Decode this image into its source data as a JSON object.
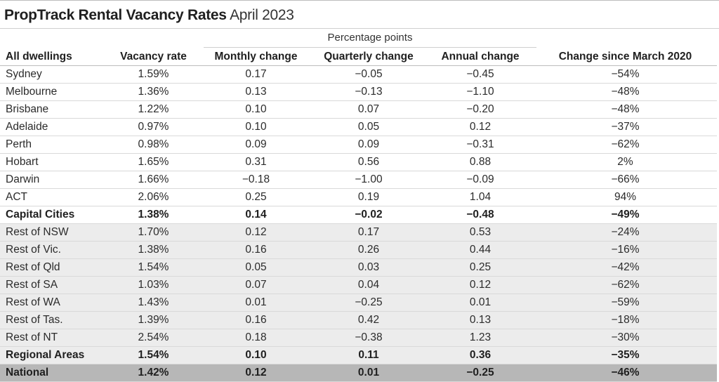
{
  "title": {
    "bold": "PropTrack Rental Vacancy Rates",
    "sub": "April 2023"
  },
  "group_header": "Percentage points",
  "columns": [
    "All dwellings",
    "Vacancy rate",
    "Monthly change",
    "Quarterly change",
    "Annual change",
    "Change since March 2020"
  ],
  "rows": [
    {
      "name": "Sydney",
      "vacancy": "1.59%",
      "monthly": "0.17",
      "quarterly": "−0.05",
      "annual": "−0.45",
      "since2020": "−54%"
    },
    {
      "name": "Melbourne",
      "vacancy": "1.36%",
      "monthly": "0.13",
      "quarterly": "−0.13",
      "annual": "−1.10",
      "since2020": "−48%"
    },
    {
      "name": "Brisbane",
      "vacancy": "1.22%",
      "monthly": "0.10",
      "quarterly": "0.07",
      "annual": "−0.20",
      "since2020": "−48%"
    },
    {
      "name": "Adelaide",
      "vacancy": "0.97%",
      "monthly": "0.10",
      "quarterly": "0.05",
      "annual": "0.12",
      "since2020": "−37%"
    },
    {
      "name": "Perth",
      "vacancy": "0.98%",
      "monthly": "0.09",
      "quarterly": "0.09",
      "annual": "−0.31",
      "since2020": "−62%"
    },
    {
      "name": "Hobart",
      "vacancy": "1.65%",
      "monthly": "0.31",
      "quarterly": "0.56",
      "annual": "0.88",
      "since2020": "2%"
    },
    {
      "name": "Darwin",
      "vacancy": "1.66%",
      "monthly": "−0.18",
      "quarterly": "−1.00",
      "annual": "−0.09",
      "since2020": "−66%"
    },
    {
      "name": "ACT",
      "vacancy": "2.06%",
      "monthly": "0.25",
      "quarterly": "0.19",
      "annual": "1.04",
      "since2020": "94%"
    },
    {
      "name": "Capital Cities",
      "vacancy": "1.38%",
      "monthly": "0.14",
      "quarterly": "−0.02",
      "annual": "−0.48",
      "since2020": "−49%"
    },
    {
      "name": "Rest of NSW",
      "vacancy": "1.70%",
      "monthly": "0.12",
      "quarterly": "0.17",
      "annual": "0.53",
      "since2020": "−24%"
    },
    {
      "name": "Rest of Vic.",
      "vacancy": "1.38%",
      "monthly": "0.16",
      "quarterly": "0.26",
      "annual": "0.44",
      "since2020": "−16%"
    },
    {
      "name": "Rest of Qld",
      "vacancy": "1.54%",
      "monthly": "0.05",
      "quarterly": "0.03",
      "annual": "0.25",
      "since2020": "−42%"
    },
    {
      "name": "Rest of SA",
      "vacancy": "1.03%",
      "monthly": "0.07",
      "quarterly": "0.04",
      "annual": "0.12",
      "since2020": "−62%"
    },
    {
      "name": "Rest of WA",
      "vacancy": "1.43%",
      "monthly": "0.01",
      "quarterly": "−0.25",
      "annual": "0.01",
      "since2020": "−59%"
    },
    {
      "name": "Rest of Tas.",
      "vacancy": "1.39%",
      "monthly": "0.16",
      "quarterly": "0.42",
      "annual": "0.13",
      "since2020": "−18%"
    },
    {
      "name": "Rest of NT",
      "vacancy": "2.54%",
      "monthly": "0.18",
      "quarterly": "−0.38",
      "annual": "1.23",
      "since2020": "−30%"
    },
    {
      "name": "Regional Areas",
      "vacancy": "1.54%",
      "monthly": "0.10",
      "quarterly": "0.11",
      "annual": "0.36",
      "since2020": "−35%"
    },
    {
      "name": "National",
      "vacancy": "1.42%",
      "monthly": "0.12",
      "quarterly": "0.01",
      "annual": "−0.25",
      "since2020": "−46%"
    }
  ]
}
